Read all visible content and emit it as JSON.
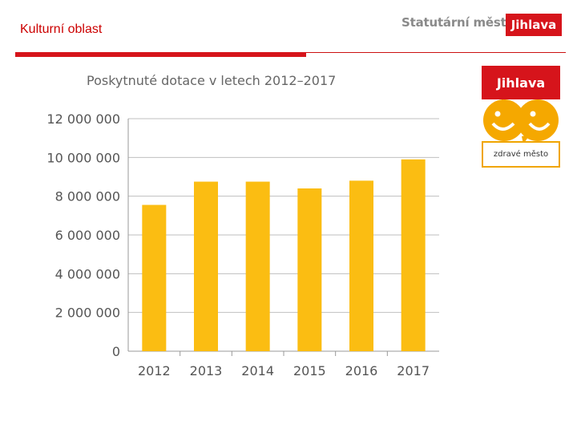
{
  "header": {
    "section_title": "Kulturní oblast",
    "brand_text": "Statutární město",
    "brand_badge": "Jihlava"
  },
  "logo": {
    "header_text": "Jihlava",
    "footer_text": "zdravé město"
  },
  "colors": {
    "accent_red": "#d6141b",
    "bar": "#fbbd12",
    "logo_orange": "#f0a500"
  },
  "chart_data": {
    "type": "bar",
    "title": "Poskytnuté dotace v letech 2012–2017",
    "categories": [
      "2012",
      "2013",
      "2014",
      "2015",
      "2016",
      "2017"
    ],
    "values": [
      7550000,
      8750000,
      8750000,
      8400000,
      8800000,
      9900000
    ],
    "ylim": [
      0,
      12000000
    ],
    "yticks": [
      0,
      2000000,
      4000000,
      6000000,
      8000000,
      10000000,
      12000000
    ],
    "ytick_labels": [
      "0",
      "2 000 000",
      "4 000 000",
      "6 000 000",
      "8 000 000",
      "10 000 000",
      "12 000 000"
    ],
    "grid": true,
    "legend": false
  }
}
